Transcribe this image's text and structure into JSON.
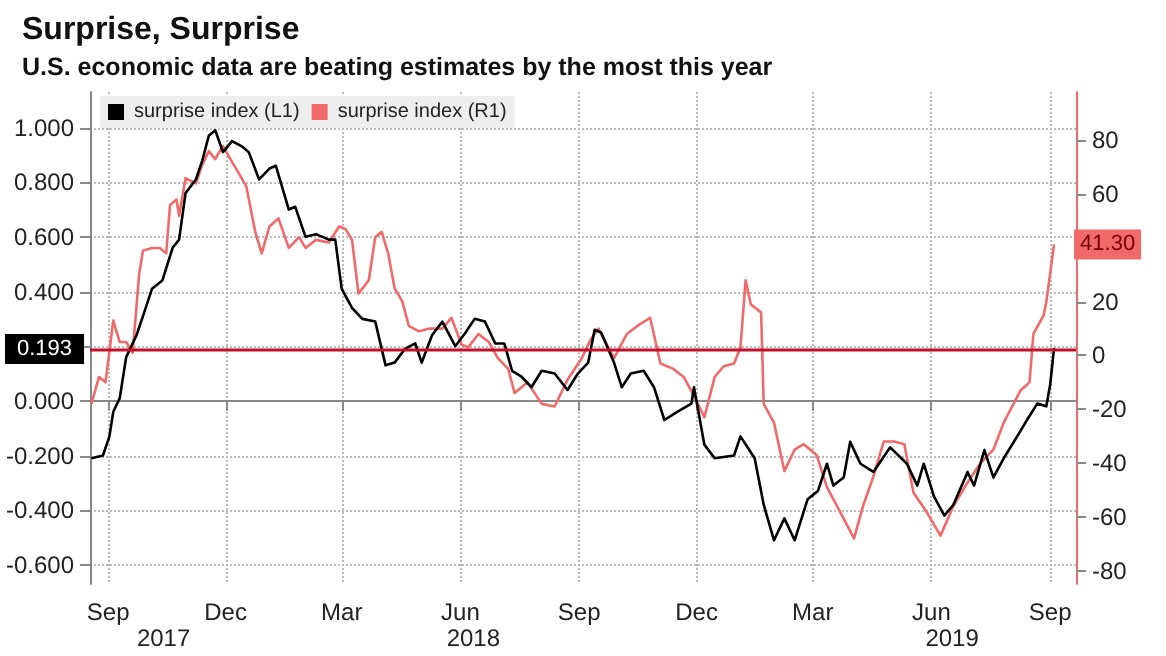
{
  "chart_data": {
    "type": "line",
    "title": "Surprise, Surprise",
    "subtitle": "U.S. economic data are beating estimates by the most this year",
    "xlim": [
      "2017-09-01",
      "2019-10-05"
    ],
    "xticks": [
      {
        "value": "2017-09-15",
        "label": "Sep"
      },
      {
        "value": "2017-12-15",
        "label": "Dec"
      },
      {
        "value": "2018-03-15",
        "label": "Mar"
      },
      {
        "value": "2018-06-15",
        "label": "Jun"
      },
      {
        "value": "2018-09-15",
        "label": "Sep"
      },
      {
        "value": "2018-12-15",
        "label": "Dec"
      },
      {
        "value": "2019-03-15",
        "label": "Mar"
      },
      {
        "value": "2019-06-15",
        "label": "Jun"
      },
      {
        "value": "2019-09-15",
        "label": "Sep"
      }
    ],
    "x2lim": [
      "2017-09-01",
      "2019-10-05"
    ],
    "x2ticks": [
      {
        "value": "2017-10-28",
        "label": "2017"
      },
      {
        "value": "2018-06-25",
        "label": "2018"
      },
      {
        "value": "2019-07-01",
        "label": "2019"
      }
    ],
    "ylim": [
      -0.67,
      1.13
    ],
    "yticks": [
      {
        "value": -0.6,
        "label": "-0.600"
      },
      {
        "value": -0.4,
        "label": "-0.400"
      },
      {
        "value": -0.2,
        "label": "-0.200"
      },
      {
        "value": 0,
        "label": "0.000"
      },
      {
        "value": 0.2,
        "label": null
      },
      {
        "value": 0.4,
        "label": "0.400"
      },
      {
        "value": 0.6,
        "label": "0.600"
      },
      {
        "value": 0.8,
        "label": "0.800"
      },
      {
        "value": 1,
        "label": "1.000"
      }
    ],
    "y2lim": [
      -85,
      98
    ],
    "y2ticks": [
      -80,
      -60,
      -40,
      -20,
      0,
      20,
      {
        "value": 40,
        "label": null
      },
      60,
      80
    ],
    "grid": true,
    "legend": "top left",
    "marker": "none",
    "line_style": "solid",
    "ref_lines": [
      {
        "axis": "y",
        "value": 0.193,
        "label": "0.193",
        "color": "#c0102a"
      }
    ],
    "series": [
      {
        "name": "surprise index (L1)",
        "color": "#000000",
        "x": [
          "2017-09-02",
          "2017-09-11",
          "2017-09-16",
          "2017-09-19",
          "2017-09-24",
          "2017-09-29",
          "2017-10-07",
          "2017-10-12",
          "2017-10-19",
          "2017-10-27",
          "2017-11-04",
          "2017-11-09",
          "2017-11-14",
          "2017-11-22",
          "2017-11-27",
          "2017-12-02",
          "2017-12-07",
          "2017-12-13",
          "2017-12-20",
          "2017-12-28",
          "2018-01-02",
          "2018-01-10",
          "2018-01-18",
          "2018-01-23",
          "2018-01-28",
          "2018-02-02",
          "2018-02-07",
          "2018-02-15",
          "2018-02-23",
          "2018-03-05",
          "2018-03-10",
          "2018-03-15",
          "2018-03-23",
          "2018-03-31",
          "2018-04-10",
          "2018-04-18",
          "2018-04-25",
          "2018-05-03",
          "2018-05-11",
          "2018-05-16",
          "2018-05-24",
          "2018-06-01",
          "2018-06-11",
          "2018-06-19",
          "2018-06-26",
          "2018-07-04",
          "2018-07-12",
          "2018-07-19",
          "2018-07-25",
          "2018-08-01",
          "2018-08-09",
          "2018-08-17",
          "2018-08-27",
          "2018-09-06",
          "2018-09-14",
          "2018-09-22",
          "2018-09-27",
          "2018-10-02",
          "2018-10-12",
          "2018-10-18",
          "2018-10-25",
          "2018-11-04",
          "2018-11-12",
          "2018-11-20",
          "2018-11-30",
          "2018-12-11",
          "2018-12-13",
          "2018-12-21",
          "2018-12-29",
          "2019-01-13",
          "2019-01-18",
          "2019-01-29",
          "2019-02-05",
          "2019-02-13",
          "2019-02-21",
          "2019-03-01",
          "2019-03-11",
          "2019-03-19",
          "2019-03-26",
          "2019-03-31",
          "2019-04-08",
          "2019-04-13",
          "2019-04-21",
          "2019-05-01",
          "2019-05-14",
          "2019-05-27",
          "2019-06-04",
          "2019-06-09",
          "2019-06-17",
          "2019-06-25",
          "2019-07-02",
          "2019-07-13",
          "2019-07-18",
          "2019-07-26",
          "2019-08-02",
          "2019-08-10",
          "2019-08-23",
          "2019-08-28",
          "2019-09-05",
          "2019-09-12",
          "2019-09-15",
          "2019-09-18"
        ],
        "values": [
          -0.21,
          -0.2,
          -0.13,
          -0.04,
          0.01,
          0.16,
          0.24,
          0.31,
          0.41,
          0.44,
          0.56,
          0.59,
          0.76,
          0.81,
          0.88,
          0.97,
          0.99,
          0.91,
          0.95,
          0.93,
          0.91,
          0.81,
          0.85,
          0.86,
          0.78,
          0.7,
          0.71,
          0.6,
          0.61,
          0.59,
          0.59,
          0.41,
          0.34,
          0.3,
          0.29,
          0.13,
          0.14,
          0.19,
          0.21,
          0.14,
          0.24,
          0.29,
          0.2,
          0.25,
          0.3,
          0.29,
          0.21,
          0.21,
          0.11,
          0.09,
          0.05,
          0.11,
          0.1,
          0.04,
          0.1,
          0.14,
          0.26,
          0.25,
          0.14,
          0.05,
          0.1,
          0.11,
          0.05,
          -0.07,
          -0.04,
          -0.01,
          0.05,
          -0.16,
          -0.21,
          -0.2,
          -0.13,
          -0.21,
          -0.38,
          -0.51,
          -0.43,
          -0.51,
          -0.36,
          -0.33,
          -0.23,
          -0.31,
          -0.28,
          -0.15,
          -0.23,
          -0.26,
          -0.17,
          -0.23,
          -0.31,
          -0.23,
          -0.35,
          -0.42,
          -0.38,
          -0.26,
          -0.31,
          -0.18,
          -0.28,
          -0.21,
          -0.11,
          -0.07,
          -0.01,
          -0.02,
          0.06,
          0.193
        ]
      },
      {
        "name": "surprise index (R1)",
        "color": "#f06a6a",
        "axis": "y2",
        "x": [
          "2017-09-02",
          "2017-09-08",
          "2017-09-13",
          "2017-09-19",
          "2017-09-24",
          "2017-09-29",
          "2017-10-04",
          "2017-10-09",
          "2017-10-12",
          "2017-10-19",
          "2017-10-25",
          "2017-10-30",
          "2017-11-02",
          "2017-11-07",
          "2017-11-09",
          "2017-11-14",
          "2017-11-22",
          "2017-11-27",
          "2017-12-02",
          "2017-12-07",
          "2017-12-13",
          "2017-12-20",
          "2017-12-25",
          "2017-12-31",
          "2018-01-07",
          "2018-01-12",
          "2018-01-18",
          "2018-01-25",
          "2018-02-02",
          "2018-02-10",
          "2018-02-15",
          "2018-02-23",
          "2018-03-05",
          "2018-03-13",
          "2018-03-18",
          "2018-03-23",
          "2018-03-28",
          "2018-04-05",
          "2018-04-10",
          "2018-04-15",
          "2018-04-20",
          "2018-04-25",
          "2018-05-01",
          "2018-05-06",
          "2018-05-14",
          "2018-05-22",
          "2018-06-01",
          "2018-06-08",
          "2018-06-16",
          "2018-06-21",
          "2018-06-29",
          "2018-07-07",
          "2018-07-14",
          "2018-07-22",
          "2018-07-27",
          "2018-08-06",
          "2018-08-17",
          "2018-08-27",
          "2018-09-06",
          "2018-09-17",
          "2018-09-24",
          "2018-09-30",
          "2018-10-12",
          "2018-10-22",
          "2018-10-30",
          "2018-11-09",
          "2018-11-17",
          "2018-11-27",
          "2018-12-05",
          "2018-12-13",
          "2018-12-21",
          "2018-12-29",
          "2019-01-05",
          "2019-01-13",
          "2019-01-18",
          "2019-01-22",
          "2019-01-26",
          "2019-02-03",
          "2019-02-05",
          "2019-02-13",
          "2019-02-21",
          "2019-03-01",
          "2019-03-08",
          "2019-03-18",
          "2019-03-26",
          "2019-04-05",
          "2019-04-16",
          "2019-04-23",
          "2019-05-01",
          "2019-05-09",
          "2019-05-17",
          "2019-05-25",
          "2019-06-01",
          "2019-06-11",
          "2019-06-22",
          "2019-07-02",
          "2019-07-12",
          "2019-07-23",
          "2019-08-02",
          "2019-08-10",
          "2019-08-23",
          "2019-08-30",
          "2019-09-02",
          "2019-09-10",
          "2019-09-12",
          "2019-09-18"
        ],
        "values": [
          -18,
          -8,
          -10,
          13,
          5,
          5,
          1,
          30,
          39,
          40,
          40,
          38,
          56,
          58,
          52,
          66,
          64,
          71,
          76,
          73,
          78,
          72,
          68,
          63,
          46,
          38,
          48,
          51,
          40,
          44,
          40,
          43,
          42,
          48,
          47,
          43,
          23,
          28,
          44,
          46,
          38,
          25,
          20,
          11,
          9,
          10,
          10,
          14,
          4,
          3,
          8,
          5,
          -1,
          -5,
          -14,
          -10,
          -18,
          -19,
          -9,
          -1,
          6,
          10,
          -1,
          8,
          11,
          14,
          -3,
          -5,
          -8,
          -15,
          -23,
          -8,
          -4,
          -3,
          3,
          28,
          19,
          16,
          -18,
          -25,
          -43,
          -35,
          -33,
          -37,
          -49,
          -58,
          -68,
          -56,
          -45,
          -32,
          -32,
          -33,
          -51,
          -58,
          -67,
          -56,
          -48,
          -40,
          -35,
          -25,
          -13,
          -10,
          8,
          15,
          20,
          41.3
        ],
        "value_labels": [
          null,
          null,
          null,
          null,
          null,
          null,
          null,
          null,
          null,
          null,
          null,
          null,
          null,
          null,
          null,
          null,
          null,
          null,
          null,
          null,
          null,
          null,
          null,
          null,
          null,
          null,
          null,
          null,
          null,
          null,
          null,
          null,
          null,
          null,
          null,
          null,
          null,
          null,
          null,
          null,
          null,
          null,
          null,
          null,
          null,
          null,
          null,
          null,
          null,
          null,
          null,
          null,
          null,
          null,
          null,
          null,
          null,
          null,
          null,
          null,
          null,
          null,
          null,
          null,
          null,
          null,
          null,
          null,
          null,
          null,
          null,
          null,
          null,
          null,
          null,
          null,
          null,
          null,
          null,
          null,
          null,
          null,
          null,
          null,
          null,
          null,
          null,
          null,
          null,
          null,
          null,
          null,
          null,
          null,
          null,
          null,
          null,
          null,
          null,
          null,
          null,
          null,
          null,
          null,
          null,
          "41.30"
        ]
      }
    ]
  }
}
